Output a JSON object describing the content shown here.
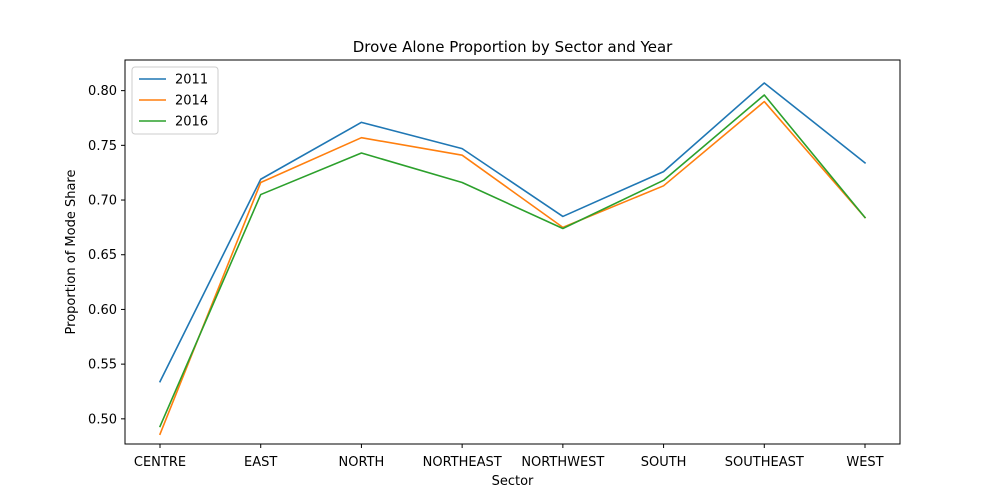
{
  "chart_data": {
    "type": "line",
    "title": "Drove Alone Proportion by Sector and Year",
    "xlabel": "Sector",
    "ylabel": "Proportion of Mode Share",
    "categories": [
      "CENTRE",
      "EAST",
      "NORTH",
      "NORTHEAST",
      "NORTHWEST",
      "SOUTH",
      "SOUTHEAST",
      "WEST"
    ],
    "ylim": [
      0.477,
      0.828
    ],
    "yticks": [
      "0.50",
      "0.55",
      "0.60",
      "0.65",
      "0.70",
      "0.75",
      "0.80"
    ],
    "grid": false,
    "legend_position": "upper-left",
    "series": [
      {
        "name": "2011",
        "color": "#1f77b4",
        "values": [
          0.534,
          0.719,
          0.771,
          0.747,
          0.685,
          0.726,
          0.807,
          0.734
        ]
      },
      {
        "name": "2014",
        "color": "#ff7f0e",
        "values": [
          0.486,
          0.716,
          0.757,
          0.741,
          0.675,
          0.713,
          0.79,
          0.684
        ]
      },
      {
        "name": "2016",
        "color": "#2ca02c",
        "values": [
          0.493,
          0.705,
          0.743,
          0.716,
          0.674,
          0.718,
          0.796,
          0.684
        ]
      }
    ]
  }
}
